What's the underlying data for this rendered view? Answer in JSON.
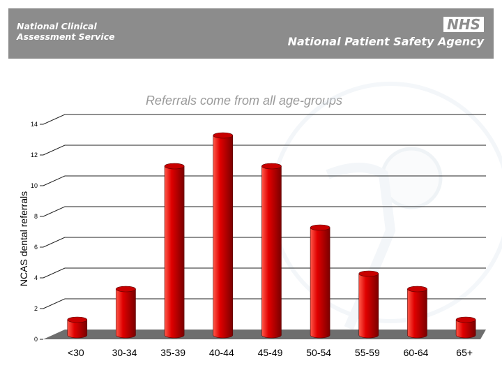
{
  "header": {
    "org_left_line1": "National Clinical",
    "org_left_line2": "Assessment Service",
    "nhs_logo": "NHS",
    "org_right": "National Patient Safety Agency"
  },
  "colors": {
    "header_bg": "#8c8c8c",
    "bar": "#e00000",
    "floor": "#6e6e6e"
  },
  "chart_data": {
    "type": "bar",
    "title": "Referrals come from all age-groups",
    "xlabel": "",
    "ylabel": "NCAS dental referrals",
    "ylim": [
      0,
      14
    ],
    "y_ticks": [
      0,
      2,
      4,
      6,
      8,
      10,
      12,
      14
    ],
    "grid": true,
    "categories": [
      "<30",
      "30-34",
      "35-39",
      "40-44",
      "45-49",
      "50-54",
      "55-59",
      "60-64",
      "65+"
    ],
    "values": [
      1,
      3,
      11,
      13,
      11,
      7,
      4,
      3,
      1
    ]
  }
}
